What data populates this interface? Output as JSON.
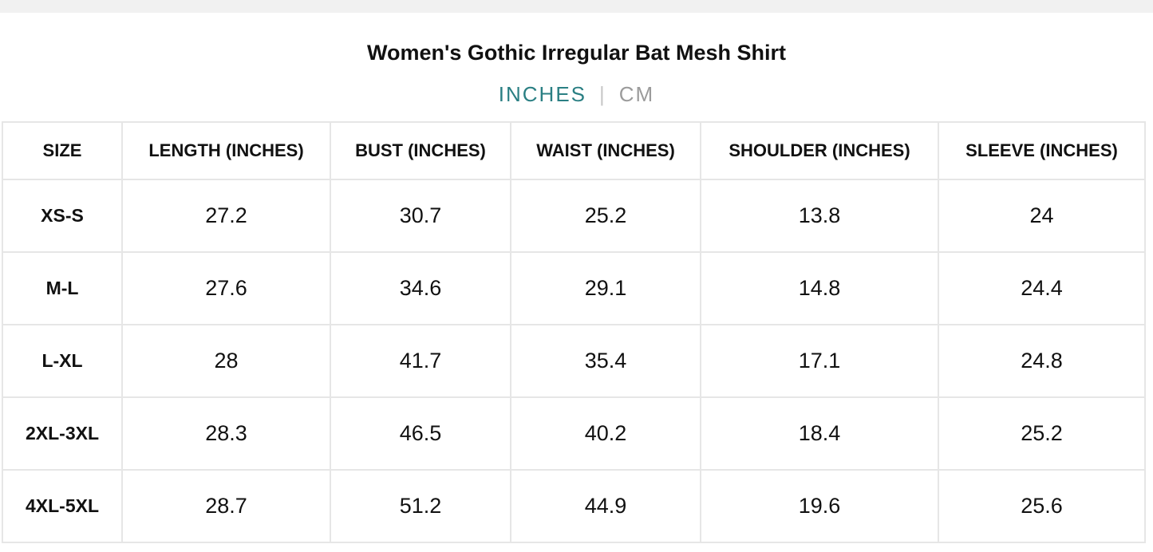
{
  "product": {
    "title": "Women's Gothic Irregular Bat Mesh Shirt"
  },
  "unit_toggle": {
    "active": "INCHES",
    "separator": "|",
    "inactive": "CM",
    "active_color": "#2a7f83",
    "inactive_color": "#9b9b9b"
  },
  "table": {
    "headers": [
      "SIZE",
      "LENGTH (INCHES)",
      "BUST (INCHES)",
      "WAIST (INCHES)",
      "SHOULDER (INCHES)",
      "SLEEVE (INCHES)"
    ],
    "rows": [
      [
        "XS-S",
        "27.2",
        "30.7",
        "25.2",
        "13.8",
        "24"
      ],
      [
        "M-L",
        "27.6",
        "34.6",
        "29.1",
        "14.8",
        "24.4"
      ],
      [
        "L-XL",
        "28",
        "41.7",
        "35.4",
        "17.1",
        "24.8"
      ],
      [
        "2XL-3XL",
        "28.3",
        "46.5",
        "40.2",
        "18.4",
        "25.2"
      ],
      [
        "4XL-5XL",
        "28.7",
        "51.2",
        "44.9",
        "19.6",
        "25.6"
      ]
    ]
  }
}
